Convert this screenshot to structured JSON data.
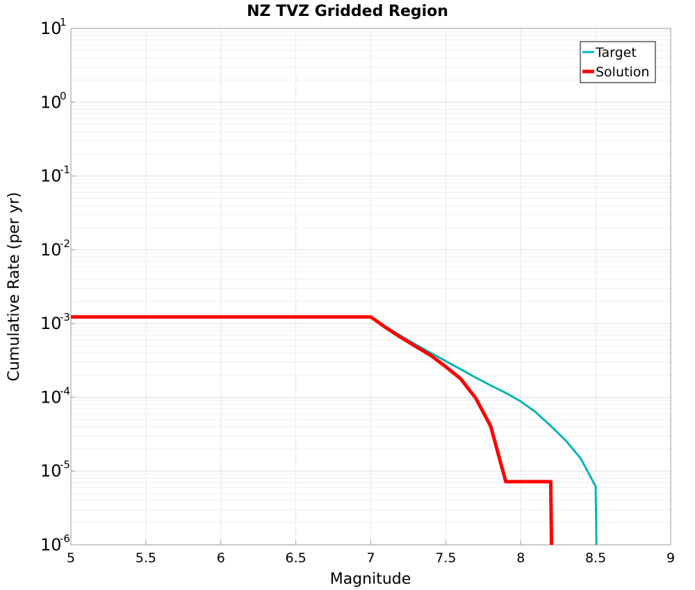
{
  "chart_data": {
    "type": "line",
    "title": "NZ TVZ Gridded Region",
    "xlabel": "Magnitude",
    "ylabel": "Cumulative Rate (per yr)",
    "xlim": [
      5,
      9
    ],
    "ylim": [
      1e-06,
      10
    ],
    "yscale": "log",
    "grid": true,
    "legend_position": "top-right",
    "x_ticks": [
      "5",
      "5.5",
      "6",
      "6.5",
      "7",
      "7.5",
      "8",
      "8.5",
      "9"
    ],
    "y_ticks": [
      {
        "base": "10",
        "exp": "-6"
      },
      {
        "base": "10",
        "exp": "-5"
      },
      {
        "base": "10",
        "exp": "-4"
      },
      {
        "base": "10",
        "exp": "-3"
      },
      {
        "base": "10",
        "exp": "-2"
      },
      {
        "base": "10",
        "exp": "-1"
      },
      {
        "base": "10",
        "exp": "0"
      },
      {
        "base": "10",
        "exp": "1"
      }
    ],
    "series": [
      {
        "name": "Target",
        "color": "#00b4b4",
        "x": [
          5.0,
          5.5,
          6.0,
          6.5,
          7.0,
          7.1,
          7.2,
          7.3,
          7.4,
          7.5,
          7.6,
          7.7,
          7.8,
          7.9,
          8.0,
          8.1,
          8.2,
          8.3,
          8.4,
          8.5,
          8.505
        ],
        "y": [
          0.00123,
          0.00123,
          0.00123,
          0.00123,
          0.00123,
          0.00091,
          0.00068,
          0.00052,
          0.0004,
          0.00031,
          0.00024,
          0.000185,
          0.000145,
          0.000115,
          8.8e-05,
          6.3e-05,
          4.1e-05,
          2.6e-05,
          1.48e-05,
          6.2e-06,
          1e-06
        ]
      },
      {
        "name": "Solution",
        "color": "#ff0000",
        "x": [
          5.0,
          5.5,
          6.0,
          6.5,
          7.0,
          7.1,
          7.2,
          7.3,
          7.4,
          7.5,
          7.6,
          7.7,
          7.8,
          7.9,
          8.0,
          8.1,
          8.2,
          8.205
        ],
        "y": [
          0.00123,
          0.00123,
          0.00123,
          0.00123,
          0.00123,
          0.00088,
          0.00065,
          0.00049,
          0.00037,
          0.00026,
          0.000178,
          9.75e-05,
          4.05e-05,
          7.2e-06,
          7.2e-06,
          7.2e-06,
          7.2e-06,
          1e-06
        ]
      }
    ]
  }
}
